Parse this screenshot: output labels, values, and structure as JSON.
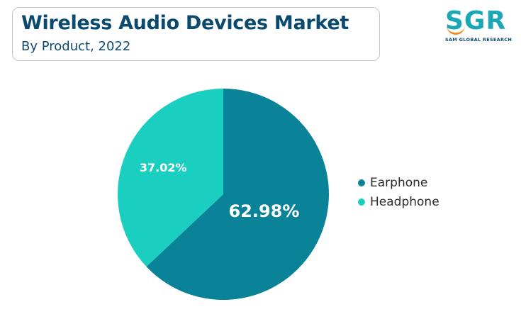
{
  "header": {
    "title": "Wireless Audio Devices Market",
    "subtitle": "By Product, 2022"
  },
  "logo": {
    "mark": "SGR",
    "text": "SAM GLOBAL RESEARCH"
  },
  "colors": {
    "earphone": "#0a8399",
    "headphone": "#1bcfc0",
    "title": "#0b4a6f"
  },
  "chart_data": {
    "type": "pie",
    "title": "Wireless Audio Devices Market",
    "subtitle": "By Product, 2022",
    "legend_position": "right",
    "slices": [
      {
        "name": "Earphone",
        "value": 62.98,
        "label": "62.98%",
        "color": "#0a8399"
      },
      {
        "name": "Headphone",
        "value": 37.02,
        "label": "37.02%",
        "color": "#1bcfc0"
      }
    ]
  }
}
